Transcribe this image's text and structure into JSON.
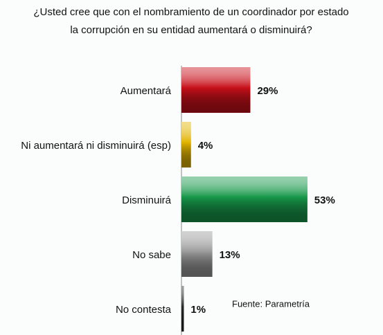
{
  "chart_data": {
    "type": "bar",
    "orientation": "horizontal",
    "title_lines": [
      "¿Usted cree que con el nombramiento de un coordinador por estado",
      "la corrupción en su entidad aumentará o disminuirá?"
    ],
    "categories": [
      "Aumentará",
      "Ni aumentará ni disminuirá (esp)",
      "Disminuirá",
      "No sabe",
      "No contesta"
    ],
    "values": [
      29,
      4,
      53,
      13,
      1
    ],
    "value_labels": [
      "29%",
      "4%",
      "53%",
      "13%",
      "1%"
    ],
    "colors": [
      "#c8101a",
      "#e2b400",
      "#17984a",
      "#9a9a9a",
      "#2a2a2a"
    ],
    "source": "Fuente: Parametría"
  }
}
